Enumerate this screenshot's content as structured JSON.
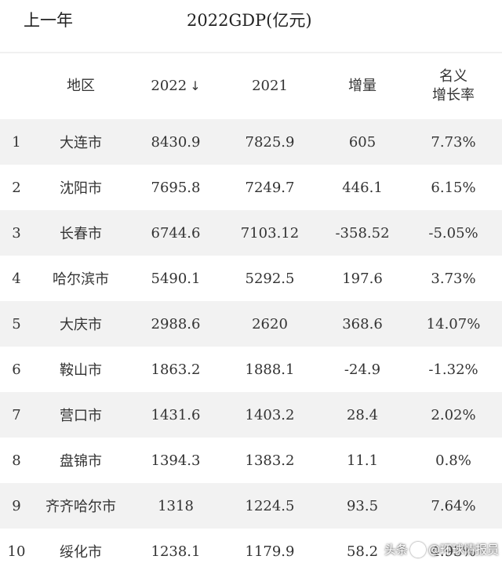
{
  "header": {
    "period": "上一年",
    "title": "2022GDP(亿元)"
  },
  "columns": {
    "region": "地区",
    "y2022": "2022",
    "y2022_sort_icon": "down-arrow",
    "y2021": "2021",
    "increase": "增量",
    "rate_line1": "名义",
    "rate_line2": "增长率"
  },
  "rows": [
    {
      "rank": "1",
      "name": "大连市",
      "y2022": "8430.9",
      "y2021": "7825.9",
      "increase": "605",
      "rate": "7.73%"
    },
    {
      "rank": "2",
      "name": "沈阳市",
      "y2022": "7695.8",
      "y2021": "7249.7",
      "increase": "446.1",
      "rate": "6.15%"
    },
    {
      "rank": "3",
      "name": "长春市",
      "y2022": "6744.6",
      "y2021": "7103.12",
      "increase": "-358.52",
      "rate": "-5.05%"
    },
    {
      "rank": "4",
      "name": "哈尔滨市",
      "y2022": "5490.1",
      "y2021": "5292.5",
      "increase": "197.6",
      "rate": "3.73%"
    },
    {
      "rank": "5",
      "name": "大庆市",
      "y2022": "2988.6",
      "y2021": "2620",
      "increase": "368.6",
      "rate": "14.07%"
    },
    {
      "rank": "6",
      "name": "鞍山市",
      "y2022": "1863.2",
      "y2021": "1888.1",
      "increase": "-24.9",
      "rate": "-1.32%"
    },
    {
      "rank": "7",
      "name": "营口市",
      "y2022": "1431.6",
      "y2021": "1403.2",
      "increase": "28.4",
      "rate": "2.02%"
    },
    {
      "rank": "8",
      "name": "盘锦市",
      "y2022": "1394.3",
      "y2021": "1383.2",
      "increase": "11.1",
      "rate": "0.8%"
    },
    {
      "rank": "9",
      "name": "齐齐哈尔市",
      "y2022": "1318",
      "y2021": "1224.5",
      "increase": "93.5",
      "rate": "7.64%"
    },
    {
      "rank": "10",
      "name": "绥化市",
      "y2022": "1238.1",
      "y2021": "1179.9",
      "increase": "58.2",
      "rate": "4.93%"
    }
  ],
  "watermark": {
    "prefix": "头条",
    "account": "@环球情报员"
  }
}
